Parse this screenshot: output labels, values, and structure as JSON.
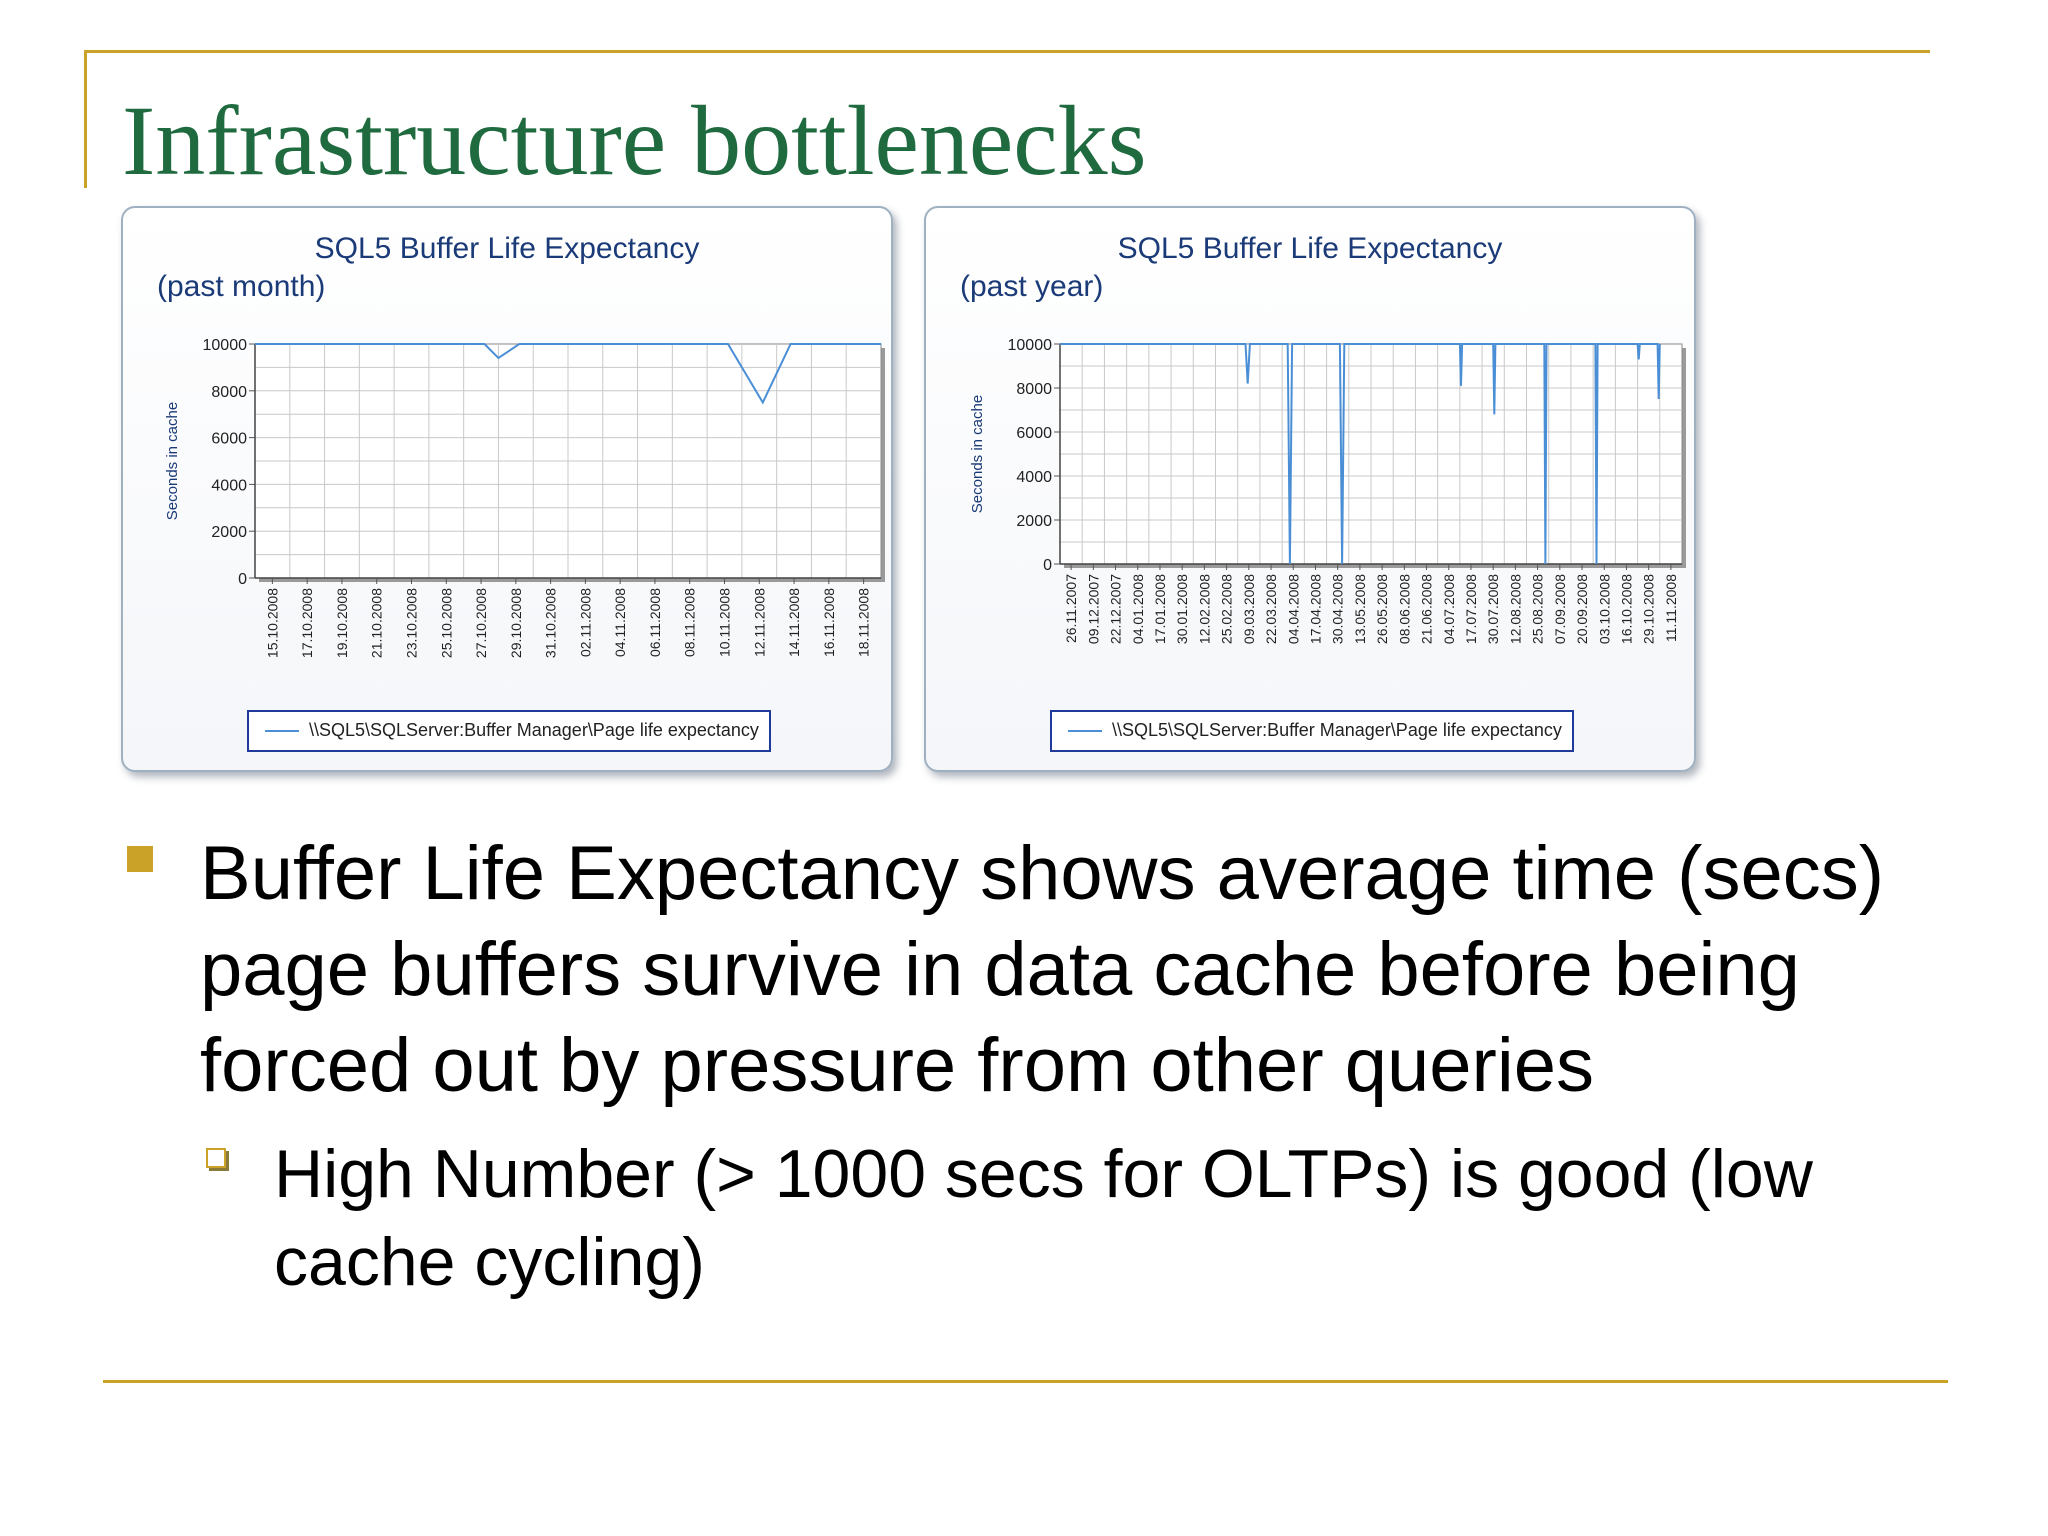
{
  "slide": {
    "title": "Infrastructure bottlenecks",
    "bullet": "Buffer Life Expectancy shows average time (secs) page buffers survive in data cache before being forced out by pressure from other queries",
    "sub_bullet": "High Number (> 1000 secs for OLTPs) is good (low cache cycling)",
    "accent_color": "#c9a227",
    "title_color": "#1f6b3f"
  },
  "chart_data": [
    {
      "type": "line",
      "title": "SQL5 Buffer Life Expectancy",
      "subtitle": "(past month)",
      "ylabel": "Seconds in cache",
      "xlabel": "",
      "ylim": [
        0,
        10000
      ],
      "yticks": [
        0,
        2000,
        4000,
        6000,
        8000,
        10000
      ],
      "grid": true,
      "legend": "bottom",
      "categories": [
        "15.10.2008",
        "17.10.2008",
        "19.10.2008",
        "21.10.2008",
        "23.10.2008",
        "25.10.2008",
        "27.10.2008",
        "29.10.2008",
        "31.10.2008",
        "02.11.2008",
        "04.11.2008",
        "06.11.2008",
        "08.11.2008",
        "10.11.2008",
        "12.11.2008",
        "14.11.2008",
        "16.11.2008",
        "18.11.2008"
      ],
      "series": [
        {
          "name": "\\\\SQL5\\SQLServer:Buffer Manager\\Page life expectancy",
          "color": "#4a8fd6",
          "x": [
            0,
            6.6,
            7.0,
            7.6,
            13.6,
            14.6,
            15.4,
            18
          ],
          "values": [
            10000,
            10000,
            9400,
            10000,
            10000,
            7500,
            10000,
            10000
          ]
        }
      ]
    },
    {
      "type": "line",
      "title": "SQL5 Buffer Life Expectancy",
      "subtitle": "(past year)",
      "ylabel": "Seconds in cache",
      "xlabel": "",
      "ylim": [
        0,
        10000
      ],
      "yticks": [
        0,
        2000,
        4000,
        6000,
        8000,
        10000
      ],
      "grid": true,
      "legend": "bottom",
      "categories": [
        "26.11.2007",
        "09.12.2007",
        "22.12.2007",
        "04.01.2008",
        "17.01.2008",
        "30.01.2008",
        "12.02.2008",
        "25.02.2008",
        "09.03.2008",
        "22.03.2008",
        "04.04.2008",
        "17.04.2008",
        "30.04.2008",
        "13.05.2008",
        "26.05.2008",
        "08.06.2008",
        "21.06.2008",
        "04.07.2008",
        "17.07.2008",
        "30.07.2008",
        "12.08.2008",
        "25.08.2008",
        "07.09.2008",
        "20.09.2008",
        "03.10.2008",
        "16.10.2008",
        "29.10.2008",
        "11.11.2008"
      ],
      "series": [
        {
          "name": "\\\\SQL5\\SQLServer:Buffer Manager\\Page life expectancy",
          "color": "#4a8fd6",
          "x": [
            0,
            8.35,
            8.45,
            8.55,
            10.25,
            10.35,
            10.45,
            12.6,
            12.7,
            12.8,
            18.0,
            18.05,
            18.1,
            19.5,
            19.55,
            19.6,
            21.8,
            21.85,
            21.9,
            24.1,
            24.15,
            24.2,
            26.0,
            26.05,
            26.1,
            26.9,
            26.95,
            27.0
          ],
          "values": [
            10000,
            10000,
            8200,
            10000,
            10000,
            0,
            10000,
            10000,
            0,
            10000,
            10000,
            8100,
            10000,
            10000,
            6800,
            10000,
            10000,
            0,
            10000,
            10000,
            0,
            10000,
            10000,
            9300,
            10000,
            10000,
            7500,
            10000
          ]
        }
      ]
    }
  ]
}
